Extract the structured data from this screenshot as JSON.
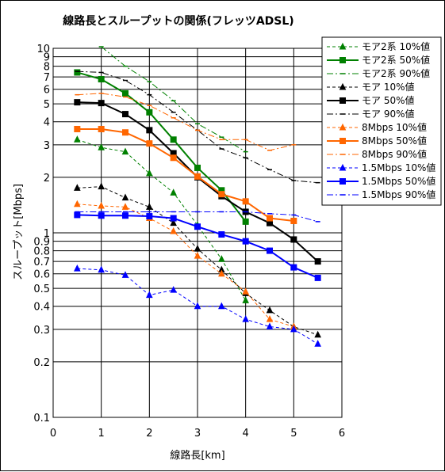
{
  "chart_data": {
    "type": "line",
    "title": "線路長とスループットの関係(フレッツADSL)",
    "xlabel": "線路長[km]",
    "ylabel": "スループット[Mbps]",
    "xlim": [
      0,
      6
    ],
    "ylim": [
      0.1,
      10
    ],
    "yscale": "log",
    "grid": true,
    "legend_position": "right",
    "x_ticks": [
      0,
      1,
      2,
      3,
      4,
      5,
      6
    ],
    "y_ticks": [
      {
        "v": 0.1,
        "label": "0.1"
      },
      {
        "v": 0.2,
        "label": "0.2"
      },
      {
        "v": 0.3,
        "label": "0.3"
      },
      {
        "v": 0.4,
        "label": "0.4"
      },
      {
        "v": 0.5,
        "label": "0.5"
      },
      {
        "v": 0.6,
        "label": "0.6"
      },
      {
        "v": 0.7,
        "label": "0.7"
      },
      {
        "v": 0.8,
        "label": "0.8"
      },
      {
        "v": 0.9,
        "label": "0.9"
      },
      {
        "v": 1,
        "label": "1"
      },
      {
        "v": 2,
        "label": "2"
      },
      {
        "v": 3,
        "label": "3"
      },
      {
        "v": 4,
        "label": "4"
      },
      {
        "v": 5,
        "label": "5"
      },
      {
        "v": 6,
        "label": "6"
      },
      {
        "v": 7,
        "label": "7"
      },
      {
        "v": 8,
        "label": "8"
      },
      {
        "v": 9,
        "label": "9"
      },
      {
        "v": 10,
        "label": "10"
      }
    ],
    "series": [
      {
        "name": "モア2系 10%値",
        "color": "#008000",
        "dash": "dashed",
        "width": 1,
        "marker": "triangle",
        "x": [
          0.5,
          1,
          1.5,
          2,
          2.5,
          3,
          3.5,
          4
        ],
        "y": [
          3.2,
          2.9,
          2.75,
          2.1,
          1.65,
          1.1,
          0.72,
          0.43
        ]
      },
      {
        "name": "モア2系 50%値",
        "color": "#008000",
        "dash": "solid",
        "width": 2,
        "marker": "square",
        "x": [
          0.5,
          1,
          1.5,
          2,
          2.5,
          3,
          3.5,
          4
        ],
        "y": [
          7.4,
          6.8,
          5.7,
          4.5,
          3.2,
          2.25,
          1.7,
          1.15
        ]
      },
      {
        "name": "モア2系 90%値",
        "color": "#008000",
        "dash": "dashdot",
        "width": 1,
        "marker": "dash",
        "x": [
          1,
          1.5,
          2,
          2.5,
          3,
          3.5,
          4
        ],
        "y": [
          10.2,
          8.0,
          6.6,
          5.2,
          3.9,
          3.3,
          2.75
        ]
      },
      {
        "name": "モア 10%値",
        "color": "#000000",
        "dash": "dashed",
        "width": 1,
        "marker": "triangle",
        "x": [
          0.5,
          1,
          1.5,
          2,
          2.5,
          3,
          3.5,
          4,
          4.5,
          5,
          5.5
        ],
        "y": [
          1.75,
          1.78,
          1.55,
          1.38,
          1.13,
          0.82,
          0.63,
          0.47,
          0.38,
          0.31,
          0.28
        ]
      },
      {
        "name": "モア 50%値",
        "color": "#000000",
        "dash": "solid",
        "width": 2,
        "marker": "square",
        "x": [
          0.5,
          1,
          1.5,
          2,
          2.5,
          3,
          3.5,
          4,
          4.5,
          5,
          5.5
        ],
        "y": [
          5.1,
          5.05,
          4.4,
          3.6,
          2.7,
          2.0,
          1.58,
          1.3,
          1.13,
          0.92,
          0.7
        ]
      },
      {
        "name": "モア 90%値",
        "color": "#000000",
        "dash": "dashdot",
        "width": 1,
        "marker": "dash",
        "x": [
          0.5,
          1,
          1.5,
          2,
          2.5,
          3,
          3.5,
          4,
          4.5,
          5,
          5.5
        ],
        "y": [
          7.5,
          7.4,
          6.7,
          5.6,
          4.5,
          3.6,
          2.85,
          2.55,
          2.2,
          1.92,
          1.87
        ]
      },
      {
        "name": "8Mbps 10%値",
        "color": "#ff6600",
        "dash": "dashed",
        "width": 1,
        "marker": "triangle",
        "x": [
          0.5,
          1,
          1.5,
          2,
          2.5,
          3,
          3.5,
          4,
          4.5,
          5
        ],
        "y": [
          1.43,
          1.4,
          1.38,
          1.2,
          1.02,
          0.75,
          0.6,
          0.48,
          0.34,
          0.31
        ]
      },
      {
        "name": "8Mbps 50%値",
        "color": "#ff6600",
        "dash": "solid",
        "width": 2,
        "marker": "square",
        "x": [
          0.5,
          1,
          1.5,
          2,
          2.5,
          3,
          3.5,
          4,
          4.5,
          5
        ],
        "y": [
          3.65,
          3.65,
          3.5,
          3.05,
          2.55,
          2.02,
          1.62,
          1.48,
          1.2,
          1.16
        ]
      },
      {
        "name": "8Mbps 90%値",
        "color": "#ff6600",
        "dash": "dashdot",
        "width": 1,
        "marker": "dash",
        "x": [
          0.5,
          1,
          1.5,
          2,
          2.5,
          3,
          3.5,
          4,
          4.5,
          5
        ],
        "y": [
          5.6,
          5.7,
          5.45,
          4.9,
          4.2,
          3.6,
          3.2,
          3.2,
          2.8,
          3.0
        ]
      },
      {
        "name": "1.5Mbps 10%値",
        "color": "#0000ff",
        "dash": "dashed",
        "width": 1,
        "marker": "triangle",
        "x": [
          0.5,
          1,
          1.5,
          2,
          2.5,
          3,
          3.5,
          4,
          4.5,
          5,
          5.5
        ],
        "y": [
          0.64,
          0.63,
          0.59,
          0.46,
          0.49,
          0.4,
          0.4,
          0.34,
          0.31,
          0.3,
          0.25
        ]
      },
      {
        "name": "1.5Mbps 50%値",
        "color": "#0000ff",
        "dash": "solid",
        "width": 2,
        "marker": "square",
        "x": [
          0.5,
          1,
          1.5,
          2,
          2.5,
          3,
          3.5,
          4,
          4.5,
          5,
          5.5
        ],
        "y": [
          1.25,
          1.24,
          1.24,
          1.23,
          1.2,
          1.08,
          0.98,
          0.9,
          0.8,
          0.65,
          0.57
        ]
      },
      {
        "name": "1.5Mbps 90%値",
        "color": "#0000ff",
        "dash": "dashdot",
        "width": 1,
        "marker": "dash",
        "x": [
          0.5,
          1,
          1.5,
          2,
          2.5,
          3,
          3.5,
          4,
          4.5,
          5,
          5.5
        ],
        "y": [
          1.3,
          1.3,
          1.3,
          1.3,
          1.3,
          1.3,
          1.3,
          1.3,
          1.27,
          1.25,
          1.15
        ]
      }
    ]
  }
}
